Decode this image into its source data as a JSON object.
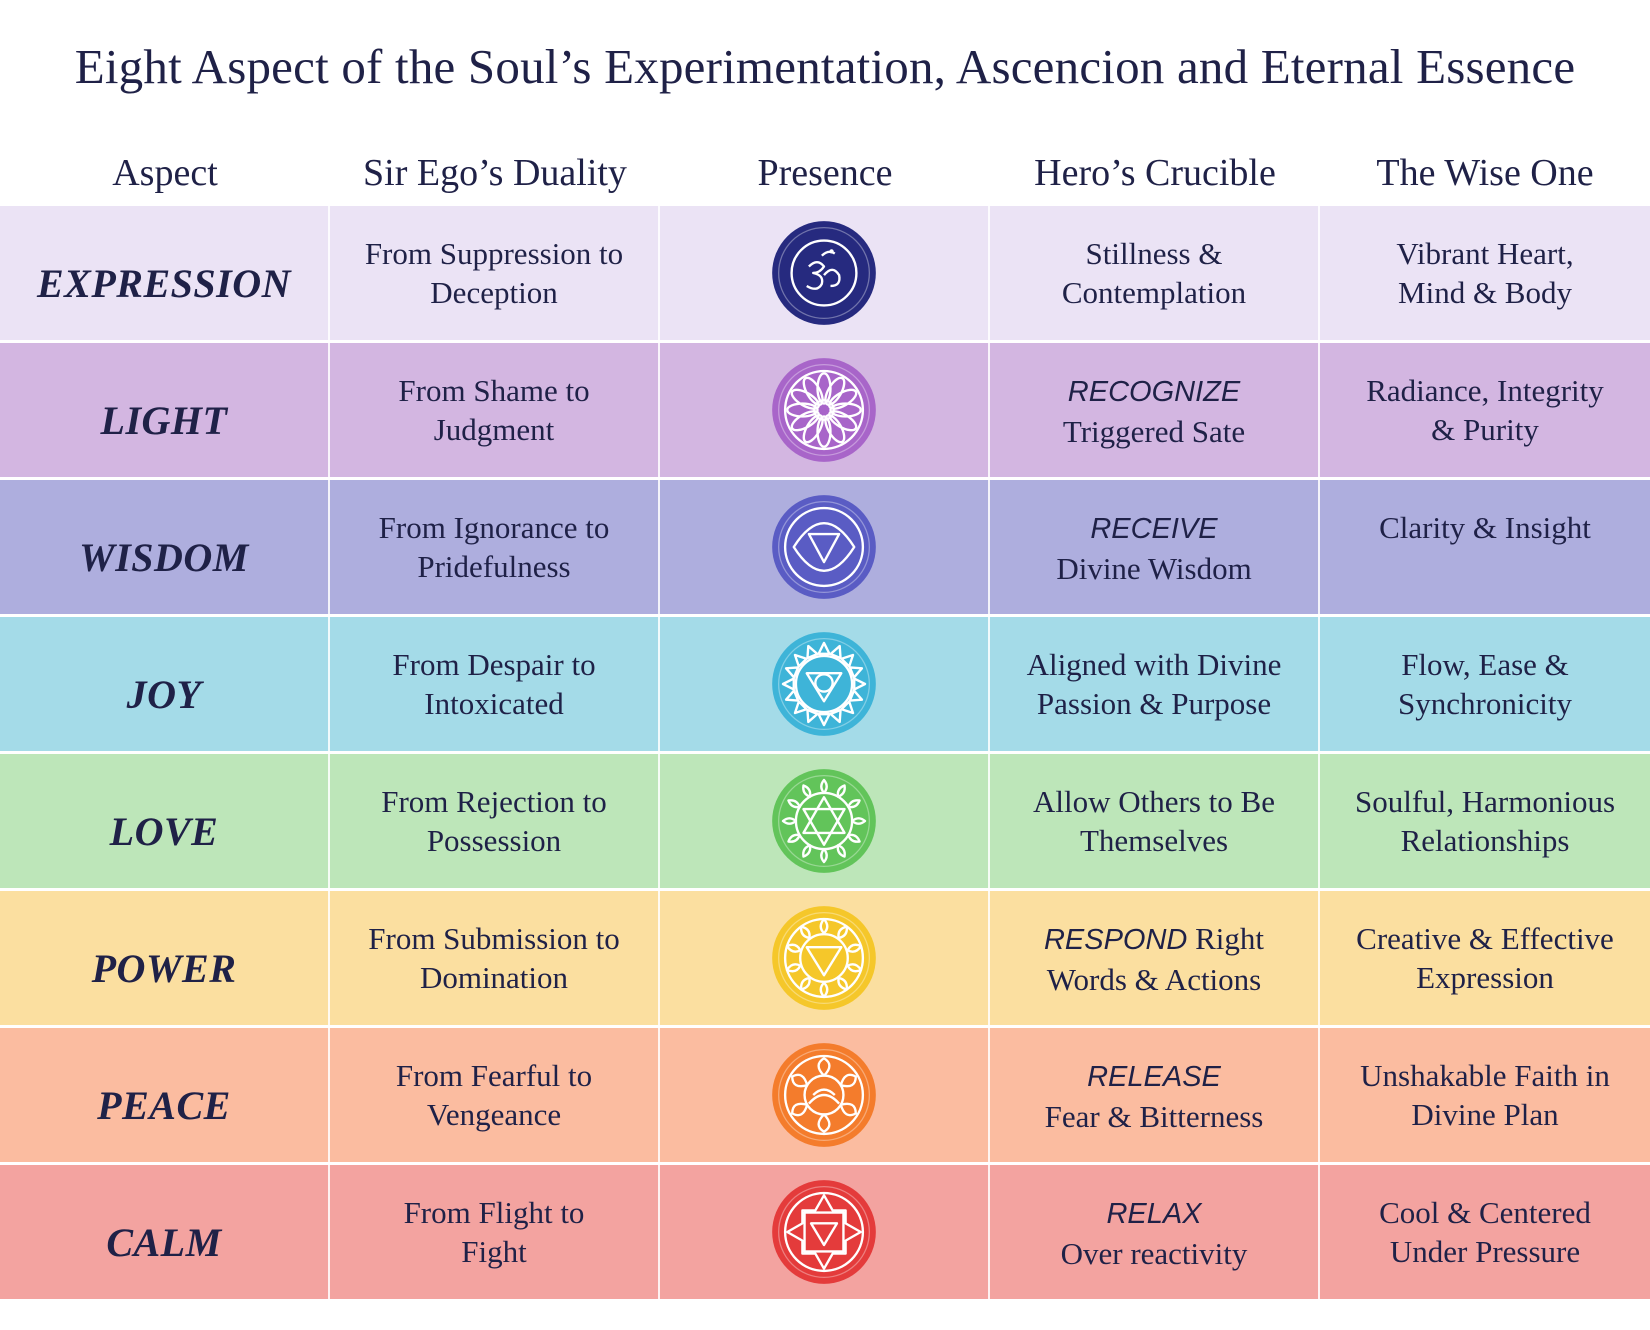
{
  "title": "Eight Aspect of the Soul’s Experimentation, Ascencion and Eternal Essence",
  "headers": {
    "aspect": "Aspect",
    "duality": "Sir Ego’s Duality",
    "presence": "Presence",
    "crucible": "Hero’s Crucible",
    "wise": "The Wise One"
  },
  "rows": [
    {
      "aspect": "EXPRESSION",
      "bg": "#ebe3f5",
      "duality": [
        "From Suppression to",
        "Deception"
      ],
      "icon": "om-chakra-icon",
      "icon_color": "#262a7f",
      "crucible_key": "",
      "crucible": [
        "Stillness &",
        "Contemplation"
      ],
      "wise": [
        "Vibrant Heart,",
        "Mind & Body"
      ]
    },
    {
      "aspect": "LIGHT",
      "bg": "#d3b6e1",
      "duality": [
        "From Shame to",
        "Judgment"
      ],
      "icon": "lotus-chakra-icon",
      "icon_color": "#a865c9",
      "crucible_key": "RECOGNIZE",
      "crucible": [
        "Triggered Sate"
      ],
      "wise": [
        "Radiance, Integrity",
        "& Purity"
      ]
    },
    {
      "aspect": "WISDOM",
      "bg": "#aeaede",
      "duality": [
        "From Ignorance to",
        "Pridefulness"
      ],
      "icon": "third-eye-chakra-icon",
      "icon_color": "#5a5cc4",
      "crucible_key": "RECEIVE",
      "crucible": [
        "Divine Wisdom"
      ],
      "wise": [
        "Clarity & Insight"
      ]
    },
    {
      "aspect": "JOY",
      "bg": "#a4dbe8",
      "duality": [
        "From Despair to",
        "Intoxicated"
      ],
      "icon": "throat-chakra-icon",
      "icon_color": "#3eb4d8",
      "crucible_key": "",
      "crucible": [
        "Aligned with Divine",
        "Passion & Purpose"
      ],
      "wise": [
        "Flow, Ease &",
        "Synchronicity"
      ]
    },
    {
      "aspect": "LOVE",
      "bg": "#bde6b9",
      "duality": [
        "From Rejection to",
        "Possession"
      ],
      "icon": "heart-chakra-icon",
      "icon_color": "#62c45a",
      "crucible_key": "",
      "crucible": [
        "Allow Others to Be",
        "Themselves"
      ],
      "wise": [
        "Soulful, Harmonious",
        "Relationships"
      ]
    },
    {
      "aspect": "POWER",
      "bg": "#fbdfa0",
      "duality": [
        "From Submission to",
        "Domination"
      ],
      "icon": "solar-plexus-chakra-icon",
      "icon_color": "#f5c72a",
      "crucible_key": "RESPOND",
      "crucible_inline": " Right",
      "crucible": [
        "Words & Actions"
      ],
      "wise": [
        "Creative & Effective",
        "Expression"
      ]
    },
    {
      "aspect": "PEACE",
      "bg": "#fbbca0",
      "duality": [
        "From Fearful to",
        "Vengeance"
      ],
      "icon": "sacral-chakra-icon",
      "icon_color": "#f47c2c",
      "crucible_key": "RELEASE",
      "crucible": [
        "Fear & Bitterness"
      ],
      "wise": [
        "Unshakable Faith in",
        "Divine Plan"
      ]
    },
    {
      "aspect": "CALM",
      "bg": "#f3a3a0",
      "duality": [
        "From Flight to",
        "Fight"
      ],
      "icon": "root-chakra-icon",
      "icon_color": "#e43b3b",
      "crucible_key": "RELAX",
      "crucible": [
        "Over reactivity"
      ],
      "wise": [
        "Cool & Centered",
        "Under Pressure"
      ]
    }
  ]
}
